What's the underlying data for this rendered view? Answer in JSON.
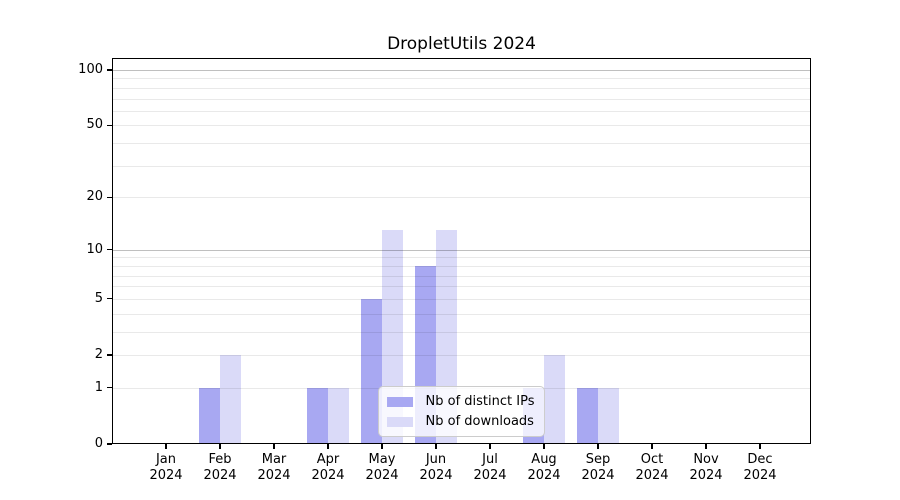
{
  "title": "DropletUtils 2024",
  "chart_data": {
    "type": "bar",
    "title": "DropletUtils 2024",
    "months": [
      "Jan",
      "Feb",
      "Mar",
      "Apr",
      "May",
      "Jun",
      "Jul",
      "Aug",
      "Sep",
      "Oct",
      "Nov",
      "Dec"
    ],
    "year": "2024",
    "categories": [
      "Jan 2024",
      "Feb 2024",
      "Mar 2024",
      "Apr 2024",
      "May 2024",
      "Jun 2024",
      "Jul 2024",
      "Aug 2024",
      "Sep 2024",
      "Oct 2024",
      "Nov 2024",
      "Dec 2024"
    ],
    "series": [
      {
        "name": "Nb of distinct IPs",
        "color": "#a8a8f2",
        "values": [
          0,
          1,
          0,
          1,
          5,
          8,
          0,
          1,
          1,
          0,
          0,
          0
        ]
      },
      {
        "name": "Nb of downloads",
        "color": "#dadaf8",
        "values": [
          0,
          2,
          0,
          1,
          13,
          13,
          0,
          2,
          1,
          0,
          0,
          0
        ]
      }
    ],
    "xlabel": "",
    "ylabel": "",
    "y_scale": "log10(1+y)",
    "y_ticks": [
      0,
      1,
      2,
      5,
      10,
      20,
      50,
      100
    ],
    "grid": {
      "minor": [
        1,
        2,
        3,
        4,
        5,
        6,
        7,
        8,
        9,
        20,
        30,
        40,
        50,
        60,
        70,
        80,
        90
      ],
      "major": [
        10,
        100
      ]
    },
    "ylim": [
      0,
      116
    ],
    "grid_on": true,
    "legend_position": "lower center"
  },
  "legend": {
    "items": [
      {
        "label": "Nb of distinct IPs",
        "color": "#a8a8f2"
      },
      {
        "label": "Nb of downloads",
        "color": "#dadaf8"
      }
    ]
  },
  "colors": {
    "background": "#ffffff",
    "spine": "#000000",
    "grid_minor": "rgba(0,0,0,0.085)",
    "grid_major": "rgba(0,0,0,0.25)",
    "legend_border": "#cccccc"
  }
}
